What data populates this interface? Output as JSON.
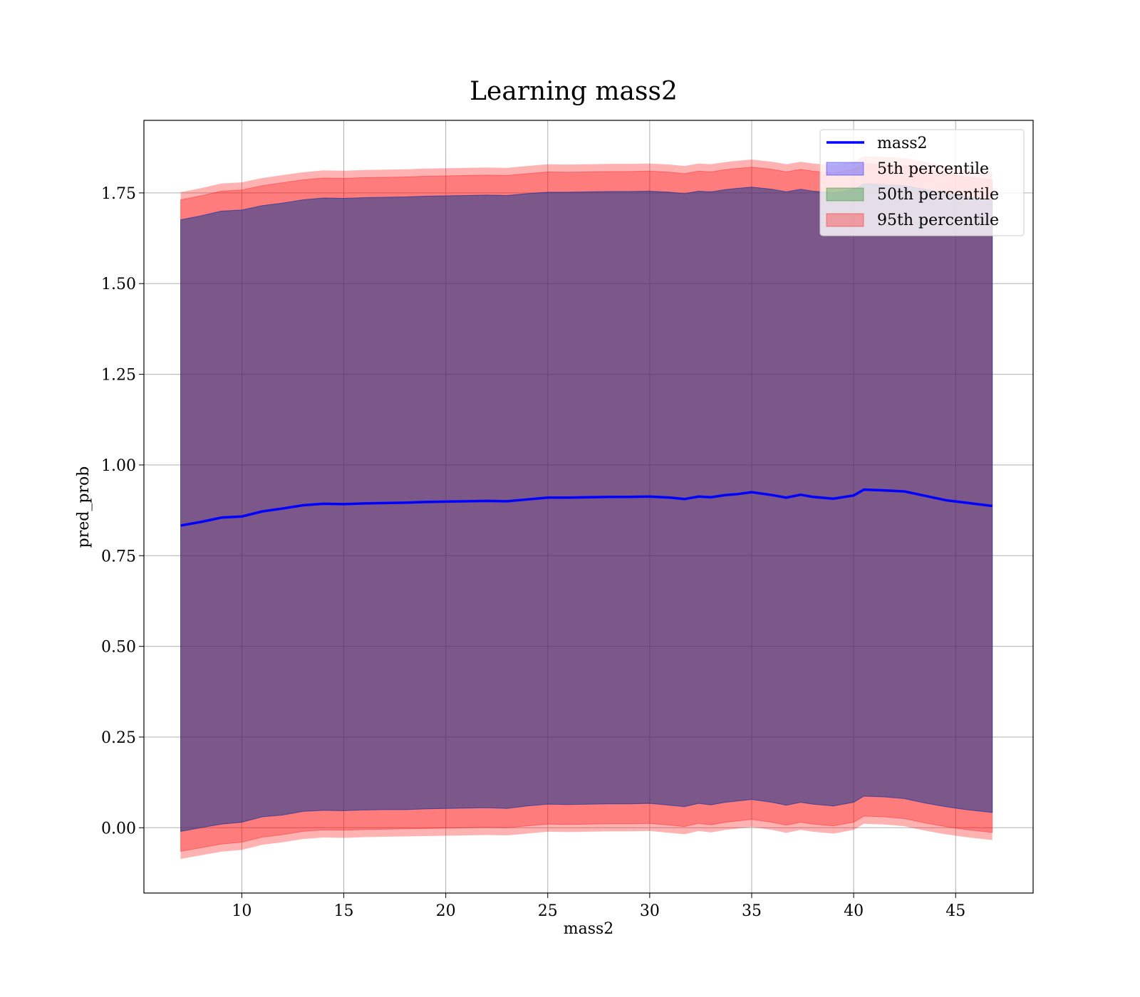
{
  "chart_data": {
    "type": "area",
    "title": "Learning mass2",
    "xlabel": "mass2",
    "ylabel": "pred_prob",
    "xlim": [
      5.2,
      48.8
    ],
    "ylim": [
      -0.18,
      1.95
    ],
    "xticks": [
      10,
      15,
      20,
      25,
      30,
      35,
      40,
      45
    ],
    "yticks": [
      0.0,
      0.25,
      0.5,
      0.75,
      1.0,
      1.25,
      1.5,
      1.75
    ],
    "ytick_labels": [
      "0.00",
      "0.25",
      "0.50",
      "0.75",
      "1.00",
      "1.25",
      "1.50",
      "1.75"
    ],
    "grid": true,
    "legend_position": "top-right",
    "x": [
      7.0,
      8.0,
      9.0,
      10.0,
      11.0,
      12.0,
      13.0,
      14.0,
      15.0,
      16.0,
      17.0,
      18.0,
      19.0,
      20.0,
      21.0,
      22.0,
      23.0,
      24.0,
      25.0,
      26.0,
      27.0,
      28.0,
      29.0,
      30.0,
      31.0,
      31.7,
      32.4,
      33.0,
      33.7,
      34.2,
      35.0,
      36.0,
      36.7,
      37.4,
      38.0,
      39.0,
      40.0,
      40.5,
      41.5,
      42.5,
      43.5,
      44.5,
      45.5,
      46.8
    ],
    "series": [
      {
        "name": "mass2",
        "color": "#0000ff",
        "values": [
          0.833,
          0.843,
          0.855,
          0.858,
          0.872,
          0.88,
          0.889,
          0.893,
          0.892,
          0.894,
          0.895,
          0.896,
          0.898,
          0.899,
          0.9,
          0.901,
          0.9,
          0.905,
          0.91,
          0.91,
          0.911,
          0.912,
          0.912,
          0.913,
          0.91,
          0.906,
          0.913,
          0.911,
          0.917,
          0.919,
          0.925,
          0.917,
          0.91,
          0.918,
          0.912,
          0.907,
          0.916,
          0.932,
          0.93,
          0.927,
          0.915,
          0.903,
          0.896,
          0.887
        ]
      }
    ],
    "bands": [
      {
        "name": "5th percentile",
        "color": "#0000ff",
        "lower": [
          -0.01,
          0.0,
          0.01,
          0.015,
          0.03,
          0.035,
          0.045,
          0.048,
          0.047,
          0.049,
          0.05,
          0.05,
          0.052,
          0.053,
          0.054,
          0.055,
          0.053,
          0.06,
          0.065,
          0.064,
          0.065,
          0.066,
          0.066,
          0.067,
          0.062,
          0.058,
          0.067,
          0.063,
          0.07,
          0.073,
          0.078,
          0.07,
          0.062,
          0.07,
          0.065,
          0.06,
          0.07,
          0.087,
          0.085,
          0.08,
          0.068,
          0.058,
          0.05,
          0.042
        ],
        "upper": [
          1.676,
          1.687,
          1.7,
          1.703,
          1.715,
          1.722,
          1.731,
          1.736,
          1.735,
          1.737,
          1.738,
          1.739,
          1.741,
          1.742,
          1.743,
          1.744,
          1.743,
          1.748,
          1.752,
          1.752,
          1.753,
          1.754,
          1.754,
          1.755,
          1.752,
          1.748,
          1.755,
          1.753,
          1.759,
          1.762,
          1.766,
          1.76,
          1.753,
          1.76,
          1.755,
          1.75,
          1.76,
          1.775,
          1.773,
          1.77,
          1.76,
          1.748,
          1.74,
          1.73
        ]
      },
      {
        "name": "50th percentile",
        "color": "#008000",
        "lower": [
          -0.01,
          0.0,
          0.01,
          0.015,
          0.03,
          0.035,
          0.045,
          0.048,
          0.047,
          0.049,
          0.05,
          0.05,
          0.052,
          0.053,
          0.054,
          0.055,
          0.053,
          0.06,
          0.065,
          0.064,
          0.065,
          0.066,
          0.066,
          0.067,
          0.062,
          0.058,
          0.067,
          0.063,
          0.07,
          0.073,
          0.078,
          0.07,
          0.062,
          0.07,
          0.065,
          0.06,
          0.07,
          0.087,
          0.085,
          0.08,
          0.068,
          0.058,
          0.05,
          0.042
        ],
        "upper": [
          1.676,
          1.687,
          1.7,
          1.703,
          1.715,
          1.722,
          1.731,
          1.736,
          1.735,
          1.737,
          1.738,
          1.739,
          1.741,
          1.742,
          1.743,
          1.744,
          1.743,
          1.748,
          1.752,
          1.752,
          1.753,
          1.754,
          1.754,
          1.755,
          1.752,
          1.748,
          1.755,
          1.753,
          1.759,
          1.762,
          1.766,
          1.76,
          1.753,
          1.76,
          1.755,
          1.75,
          1.76,
          1.775,
          1.773,
          1.77,
          1.76,
          1.748,
          1.74,
          1.73
        ]
      },
      {
        "name": "95th percentile",
        "color": "#ff0000",
        "lower": [
          -0.065,
          -0.055,
          -0.045,
          -0.04,
          -0.026,
          -0.019,
          -0.01,
          -0.006,
          -0.007,
          -0.005,
          -0.004,
          -0.003,
          -0.002,
          -0.001,
          0.0,
          0.001,
          0.0,
          0.005,
          0.01,
          0.009,
          0.01,
          0.011,
          0.011,
          0.012,
          0.007,
          0.003,
          0.012,
          0.008,
          0.015,
          0.018,
          0.023,
          0.015,
          0.007,
          0.015,
          0.01,
          0.005,
          0.015,
          0.032,
          0.03,
          0.025,
          0.013,
          0.003,
          -0.005,
          -0.013
        ],
        "upper": [
          1.731,
          1.742,
          1.755,
          1.758,
          1.77,
          1.778,
          1.786,
          1.791,
          1.79,
          1.792,
          1.793,
          1.794,
          1.796,
          1.797,
          1.798,
          1.799,
          1.798,
          1.803,
          1.808,
          1.807,
          1.808,
          1.809,
          1.809,
          1.81,
          1.807,
          1.803,
          1.81,
          1.808,
          1.814,
          1.817,
          1.821,
          1.815,
          1.808,
          1.815,
          1.81,
          1.805,
          1.815,
          1.83,
          1.828,
          1.825,
          1.815,
          1.803,
          1.795,
          1.785
        ]
      }
    ],
    "outer_band": {
      "color": "#ff0000",
      "lower": [
        -0.086,
        -0.076,
        -0.066,
        -0.061,
        -0.047,
        -0.04,
        -0.031,
        -0.027,
        -0.028,
        -0.026,
        -0.025,
        -0.024,
        -0.023,
        -0.022,
        -0.021,
        -0.02,
        -0.021,
        -0.016,
        -0.011,
        -0.012,
        -0.011,
        -0.01,
        -0.01,
        -0.009,
        -0.014,
        -0.018,
        -0.009,
        -0.013,
        -0.006,
        -0.003,
        0.002,
        -0.006,
        -0.014,
        -0.006,
        -0.011,
        -0.016,
        -0.006,
        0.011,
        0.009,
        0.004,
        -0.008,
        -0.018,
        -0.026,
        -0.034
      ],
      "upper": [
        1.752,
        1.763,
        1.776,
        1.779,
        1.791,
        1.799,
        1.807,
        1.812,
        1.811,
        1.813,
        1.814,
        1.815,
        1.817,
        1.818,
        1.819,
        1.82,
        1.819,
        1.824,
        1.829,
        1.828,
        1.829,
        1.83,
        1.83,
        1.831,
        1.828,
        1.824,
        1.831,
        1.829,
        1.835,
        1.838,
        1.842,
        1.836,
        1.829,
        1.836,
        1.831,
        1.826,
        1.836,
        1.851,
        1.849,
        1.846,
        1.836,
        1.824,
        1.816,
        1.806
      ]
    }
  }
}
